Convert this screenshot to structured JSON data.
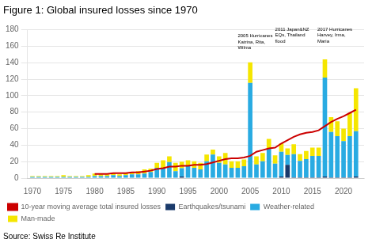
{
  "chart_data": {
    "type": "bar",
    "stacked": true,
    "title": "Figure 1: Global insured losses since 1970",
    "source": "Source: Swiss Re Institute",
    "x": [
      1970,
      1971,
      1972,
      1973,
      1974,
      1975,
      1976,
      1977,
      1978,
      1979,
      1980,
      1981,
      1982,
      1983,
      1984,
      1985,
      1986,
      1987,
      1988,
      1989,
      1990,
      1991,
      1992,
      1993,
      1994,
      1995,
      1996,
      1997,
      1998,
      1999,
      2000,
      2001,
      2002,
      2003,
      2004,
      2005,
      2006,
      2007,
      2008,
      2009,
      2010,
      2011,
      2012,
      2013,
      2014,
      2015,
      2016,
      2017,
      2018,
      2019,
      2020,
      2021,
      2022
    ],
    "series": [
      {
        "name": "Earthquakes/tsunami",
        "color": "#1a3a6b",
        "values": [
          0.5,
          0.5,
          0.5,
          0.5,
          0.5,
          0.5,
          0.5,
          0.5,
          0.5,
          0.5,
          0.5,
          0.5,
          0.5,
          0.5,
          0.5,
          0.5,
          0.5,
          0.5,
          0.5,
          0.5,
          0.5,
          0.5,
          0.5,
          0.5,
          2,
          0.5,
          0.5,
          0.5,
          0.5,
          0.5,
          0.5,
          0.5,
          0.5,
          0.5,
          0.5,
          0.5,
          0.5,
          0.5,
          0.5,
          0.5,
          2,
          16,
          1,
          1,
          1,
          1,
          1,
          2,
          1,
          1,
          1,
          1,
          2
        ]
      },
      {
        "name": "Weather-related",
        "color": "#29abe2",
        "values": [
          1,
          1,
          1,
          1,
          1,
          1,
          1,
          1,
          1,
          1,
          2,
          2,
          2,
          3,
          2,
          3,
          4,
          4,
          5,
          7,
          12,
          11,
          19,
          8,
          10,
          14,
          12,
          10,
          20,
          28,
          18,
          16,
          12,
          12,
          14,
          115,
          16,
          20,
          35,
          17,
          30,
          12,
          28,
          20,
          22,
          26,
          26,
          120,
          55,
          50,
          44,
          50,
          55
        ]
      },
      {
        "name": "Man-made",
        "color": "#f5e600",
        "values": [
          1,
          1,
          1,
          1,
          1,
          2,
          1,
          1,
          1,
          2,
          3,
          2,
          2,
          3,
          2,
          3,
          3,
          4,
          5,
          4,
          6,
          10,
          7,
          10,
          8,
          7,
          8,
          8,
          8,
          6,
          8,
          14,
          8,
          8,
          8,
          25,
          10,
          10,
          12,
          10,
          10,
          8,
          12,
          8,
          10,
          10,
          10,
          22,
          18,
          18,
          15,
          28,
          52
        ]
      },
      {
        "name": "10-year moving average total insured losses",
        "type": "line",
        "color": "#cc0000",
        "values": [
          null,
          null,
          null,
          null,
          null,
          null,
          null,
          null,
          null,
          null,
          5,
          5,
          5,
          6,
          6,
          6,
          7,
          7,
          8,
          9,
          11,
          12,
          14,
          14,
          15,
          15,
          16,
          16,
          17,
          19,
          21,
          23,
          24,
          24,
          25,
          27,
          32,
          34,
          36,
          37,
          42,
          46,
          50,
          53,
          55,
          56,
          58,
          63,
          68,
          72,
          75,
          79,
          83
        ]
      }
    ],
    "xlim": [
      1969.2,
      2023.3
    ],
    "xticks": [
      1970,
      1975,
      1980,
      1985,
      1990,
      1995,
      2000,
      2005,
      2010,
      2015,
      2020
    ],
    "ylim": [
      0,
      180
    ],
    "yticks": [
      0,
      20,
      40,
      60,
      80,
      100,
      120,
      140,
      160,
      180
    ],
    "grid": "y",
    "legend": "bottom",
    "annotations": [
      {
        "text": "2005 Hurricanes\nKatrina, Rita,\nWilma",
        "x": 2003.0,
        "y": 155
      },
      {
        "text": "2011 Japan&NZ\nEQs, Thailand\nflood",
        "x": 2009.0,
        "y": 163
      },
      {
        "text": "2017 Hurricanes\nHarvey, Irma,\nMaria",
        "x": 2015.8,
        "y": 163
      }
    ]
  }
}
